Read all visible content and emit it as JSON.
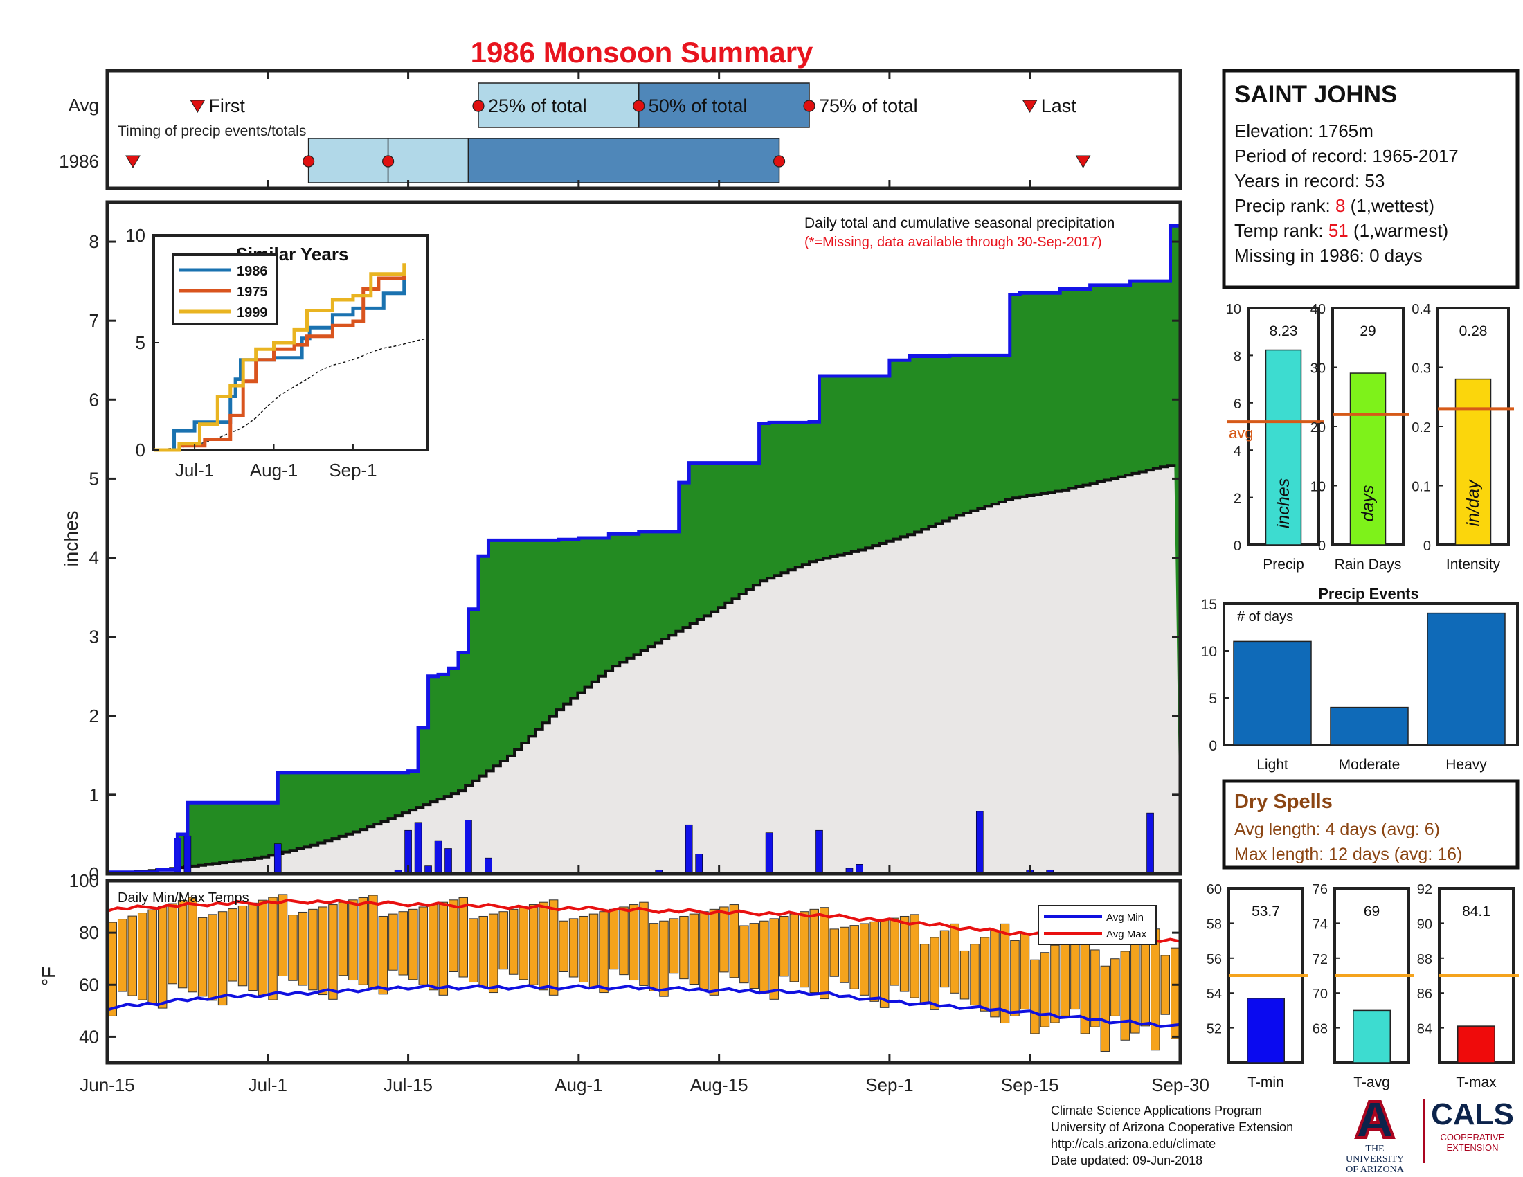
{
  "title": "1986 Monsoon Summary",
  "timing": {
    "row_avg_label": "Avg",
    "row_year_label": "1986",
    "caption": "Timing of precip events/totals",
    "first_label": "First",
    "last_label": "Last",
    "p25_label": "25% of total",
    "p50_label": "50% of total",
    "p75_label": "75% of total",
    "avg_days": {
      "first": 9,
      "p25": 37,
      "p50": 53,
      "p75": 70,
      "last": 92
    },
    "year_days": {
      "first": 2,
      "p25": 28,
      "p50": 36,
      "p75": 67,
      "last": 98
    }
  },
  "station": {
    "name": "SAINT JOHNS",
    "elevation": "Elevation: 1765m",
    "period": "Period of record: 1965-2017",
    "years": "Years in record: 53",
    "precip_rank_prefix": "Precip rank: ",
    "precip_rank_value": "8",
    "precip_rank_suffix": " (1,wettest)",
    "temp_rank_prefix": "Temp rank: ",
    "temp_rank_value": "51",
    "temp_rank_suffix": " (1,warmest)",
    "missing": "Missing in 1986: 0 days"
  },
  "main_chart": {
    "annotation": "Daily total and cumulative seasonal precipitation",
    "missing_note": "(*=Missing, data available through 30-Sep-2017)",
    "ylabel": "inches",
    "ylim": [
      0,
      8.5
    ],
    "yticks": [
      "0",
      "1",
      "2",
      "3",
      "4",
      "5",
      "6",
      "7",
      "8"
    ],
    "xtick_labels": [
      "Jun-15",
      "Jul-1",
      "Jul-15",
      "Aug-1",
      "Aug-15",
      "Sep-1",
      "Sep-15",
      "Sep-30"
    ],
    "xtick_days": [
      0,
      16,
      30,
      47,
      61,
      78,
      92,
      107
    ]
  },
  "inset": {
    "title": "Similar Years",
    "yticks": [
      "0",
      "5",
      "10"
    ],
    "xticks": [
      "Jul-1",
      "Aug-1",
      "Sep-1"
    ],
    "legend": [
      "1986",
      "1975",
      "1999"
    ]
  },
  "bars_panel": [
    {
      "label": "Precip",
      "value_text": "8.23",
      "unit": "inches",
      "yticks": [
        "0",
        "2",
        "4",
        "6",
        "8",
        "10"
      ],
      "avg_label": "avg"
    },
    {
      "label": "Rain Days",
      "value_text": "29",
      "unit": "days",
      "yticks": [
        "0",
        "10",
        "20",
        "30",
        "40"
      ]
    },
    {
      "label": "Intensity",
      "value_text": "0.28",
      "unit": "in/day",
      "yticks": [
        "0",
        "0.1",
        "0.2",
        "0.3",
        "0.4"
      ]
    }
  ],
  "precip_events": {
    "title": "Precip Events",
    "caption": "# of days",
    "yticks": [
      "0",
      "5",
      "10",
      "15"
    ]
  },
  "dry_spells": {
    "title": "Dry Spells",
    "avg_length": "Avg length: 4 days (avg: 6)",
    "max_length": "Max length: 12 days (avg: 16)"
  },
  "temp_chart": {
    "caption": "Daily Min/Max Temps",
    "ylabel": "°F",
    "yticks": [
      "40",
      "60",
      "80",
      "100"
    ],
    "legend": [
      "Avg Min",
      "Avg Max"
    ]
  },
  "temp_bars": [
    {
      "label": "T-min",
      "value_text": "53.7",
      "yticks": [
        "52",
        "54",
        "56",
        "58",
        "60"
      ]
    },
    {
      "label": "T-avg",
      "value_text": "69",
      "yticks": [
        "68",
        "70",
        "72",
        "74",
        "76"
      ]
    },
    {
      "label": "T-max",
      "value_text": "84.1",
      "yticks": [
        "84",
        "86",
        "88",
        "90",
        "92"
      ]
    }
  ],
  "footer": {
    "line1": "Climate Science Applications Program",
    "line2": "University of Arizona Cooperative Extension",
    "line3": "http://cals.arizona.edu/climate",
    "line4": "Date updated: 09-Jun-2018",
    "ua_line1": "THE UNIVERSITY",
    "ua_line2": "OF ARIZONA",
    "cals": "CALS",
    "cals_sub1": "COOPERATIVE",
    "cals_sub2": "EXTENSION"
  },
  "colors": {
    "title": "#e8141e",
    "green": "#238b22",
    "cumulative_line": "#1414e6",
    "daily_bar": "#1010e8",
    "avg_area": "#e9e7e6",
    "light_blue": "#b1d8e8",
    "mid_blue": "#4f87b9",
    "orange": "#f5a31c",
    "red": "#e01010",
    "brown": "#8b4513",
    "avg_line": "#d65a18",
    "event_bar": "#0f6ab8"
  },
  "chart_data": [
    {
      "type": "area",
      "title": "Daily total and cumulative seasonal precipitation",
      "ylabel": "inches",
      "ylim": [
        0,
        8.5
      ],
      "x_range": [
        "Jun-15",
        "Sep-30"
      ],
      "cumulative_1986": {
        "x_day": [
          0,
          5,
          7,
          8,
          16,
          17,
          30,
          31,
          32,
          33,
          34,
          35,
          36,
          37,
          38,
          40,
          45,
          47,
          50,
          53,
          57,
          58,
          61,
          63,
          65,
          66,
          70,
          71,
          78,
          80,
          83,
          84,
          90,
          91,
          95,
          98,
          102,
          106,
          107
        ],
        "y": [
          0.02,
          0.05,
          0.5,
          0.9,
          0.9,
          1.28,
          1.3,
          1.85,
          2.5,
          2.52,
          2.6,
          2.8,
          3.35,
          4.02,
          4.22,
          4.22,
          4.23,
          4.25,
          4.3,
          4.33,
          4.95,
          5.2,
          5.2,
          5.2,
          5.7,
          5.71,
          5.72,
          6.3,
          6.5,
          6.55,
          6.55,
          6.56,
          7.33,
          7.35,
          7.4,
          7.45,
          7.5,
          8.2,
          8.23
        ]
      },
      "average_cumulative": {
        "x_day": [
          0,
          5,
          10,
          15,
          20,
          25,
          30,
          35,
          40,
          45,
          50,
          55,
          60,
          65,
          70,
          75,
          80,
          85,
          90,
          95,
          100,
          105,
          107
        ],
        "y": [
          0.0,
          0.05,
          0.12,
          0.2,
          0.35,
          0.55,
          0.8,
          1.05,
          1.5,
          2.1,
          2.6,
          2.95,
          3.3,
          3.7,
          3.95,
          4.1,
          4.3,
          4.55,
          4.75,
          4.85,
          5.0,
          5.15,
          5.2
        ]
      },
      "daily_1986": {
        "x_day": [
          1,
          3,
          7,
          8,
          17,
          29,
          30,
          31,
          32,
          33,
          34,
          35,
          36,
          37,
          38,
          39,
          52,
          55,
          58,
          59,
          66,
          71,
          74,
          75,
          77,
          87,
          92,
          94,
          104
        ],
        "y": [
          0.02,
          0.02,
          0.45,
          0.48,
          0.38,
          0.05,
          0.55,
          0.65,
          0.1,
          0.42,
          0.32,
          0.02,
          0.68,
          0.02,
          0.2,
          0.02,
          0.02,
          0.05,
          0.62,
          0.25,
          0.52,
          0.55,
          0.07,
          0.12,
          0.02,
          0.79,
          0.05,
          0.05,
          0.77
        ]
      }
    },
    {
      "type": "line",
      "title": "Similar Years",
      "ylim": [
        0,
        10
      ],
      "series": [
        {
          "name": "1986",
          "x_day": [
            0,
            8,
            16,
            20,
            30,
            32,
            34,
            36,
            38,
            47,
            58,
            61,
            70,
            78,
            90,
            98
          ],
          "y": [
            0,
            0.9,
            1.3,
            1.3,
            2.5,
            3.3,
            4.2,
            4.2,
            4.2,
            4.3,
            5.2,
            5.7,
            6.3,
            6.6,
            7.3,
            8.2
          ]
        },
        {
          "name": "1975",
          "x_day": [
            0,
            10,
            20,
            30,
            35,
            40,
            47,
            55,
            60,
            70,
            78,
            82,
            88,
            98
          ],
          "y": [
            0,
            0.2,
            0.5,
            1.6,
            3.2,
            4.2,
            4.7,
            4.9,
            5.3,
            5.8,
            6.0,
            7.5,
            8.0,
            8.3
          ]
        },
        {
          "name": "1999",
          "x_day": [
            0,
            10,
            18,
            25,
            30,
            35,
            40,
            47,
            55,
            60,
            70,
            78,
            85,
            98
          ],
          "y": [
            0,
            0.3,
            1.2,
            2.5,
            3.0,
            4.2,
            4.7,
            5.0,
            5.6,
            6.5,
            7.0,
            7.2,
            8.2,
            8.7
          ]
        }
      ]
    },
    {
      "type": "bar",
      "categories": [
        "Precip",
        "Rain Days",
        "Intensity"
      ],
      "values": [
        8.23,
        29,
        0.28
      ],
      "averages": [
        5.2,
        22,
        0.23
      ],
      "ylims": [
        [
          0,
          10
        ],
        [
          0,
          40
        ],
        [
          0,
          0.4
        ]
      ]
    },
    {
      "type": "bar",
      "title": "Precip Events",
      "categories": [
        "Light",
        "Moderate",
        "Heavy"
      ],
      "values": [
        11,
        4,
        14
      ],
      "ylim": [
        0,
        15
      ]
    },
    {
      "type": "bar",
      "title": "Daily Min/Max Temps",
      "ylabel": "°F",
      "ylim": [
        30,
        100
      ],
      "series": [
        {
          "name": "Avg Min",
          "x_day": [
            0,
            10,
            20,
            30,
            40,
            50,
            60,
            70,
            80,
            90,
            100,
            107
          ],
          "y": [
            51,
            55,
            57,
            59,
            59,
            59,
            58,
            57,
            53,
            50,
            46,
            44
          ]
        },
        {
          "name": "Avg Max",
          "x_day": [
            0,
            10,
            20,
            30,
            40,
            50,
            60,
            70,
            80,
            90,
            100,
            107
          ],
          "y": [
            89,
            91,
            92,
            91,
            90,
            89,
            88,
            87,
            84,
            80,
            78,
            77
          ]
        }
      ]
    },
    {
      "type": "bar",
      "categories": [
        "T-min",
        "T-avg",
        "T-max"
      ],
      "values": [
        53.7,
        69,
        84.1
      ],
      "averages": [
        55,
        71,
        87
      ],
      "ylims": [
        [
          50,
          60
        ],
        [
          66,
          76
        ],
        [
          82,
          92
        ]
      ]
    }
  ]
}
